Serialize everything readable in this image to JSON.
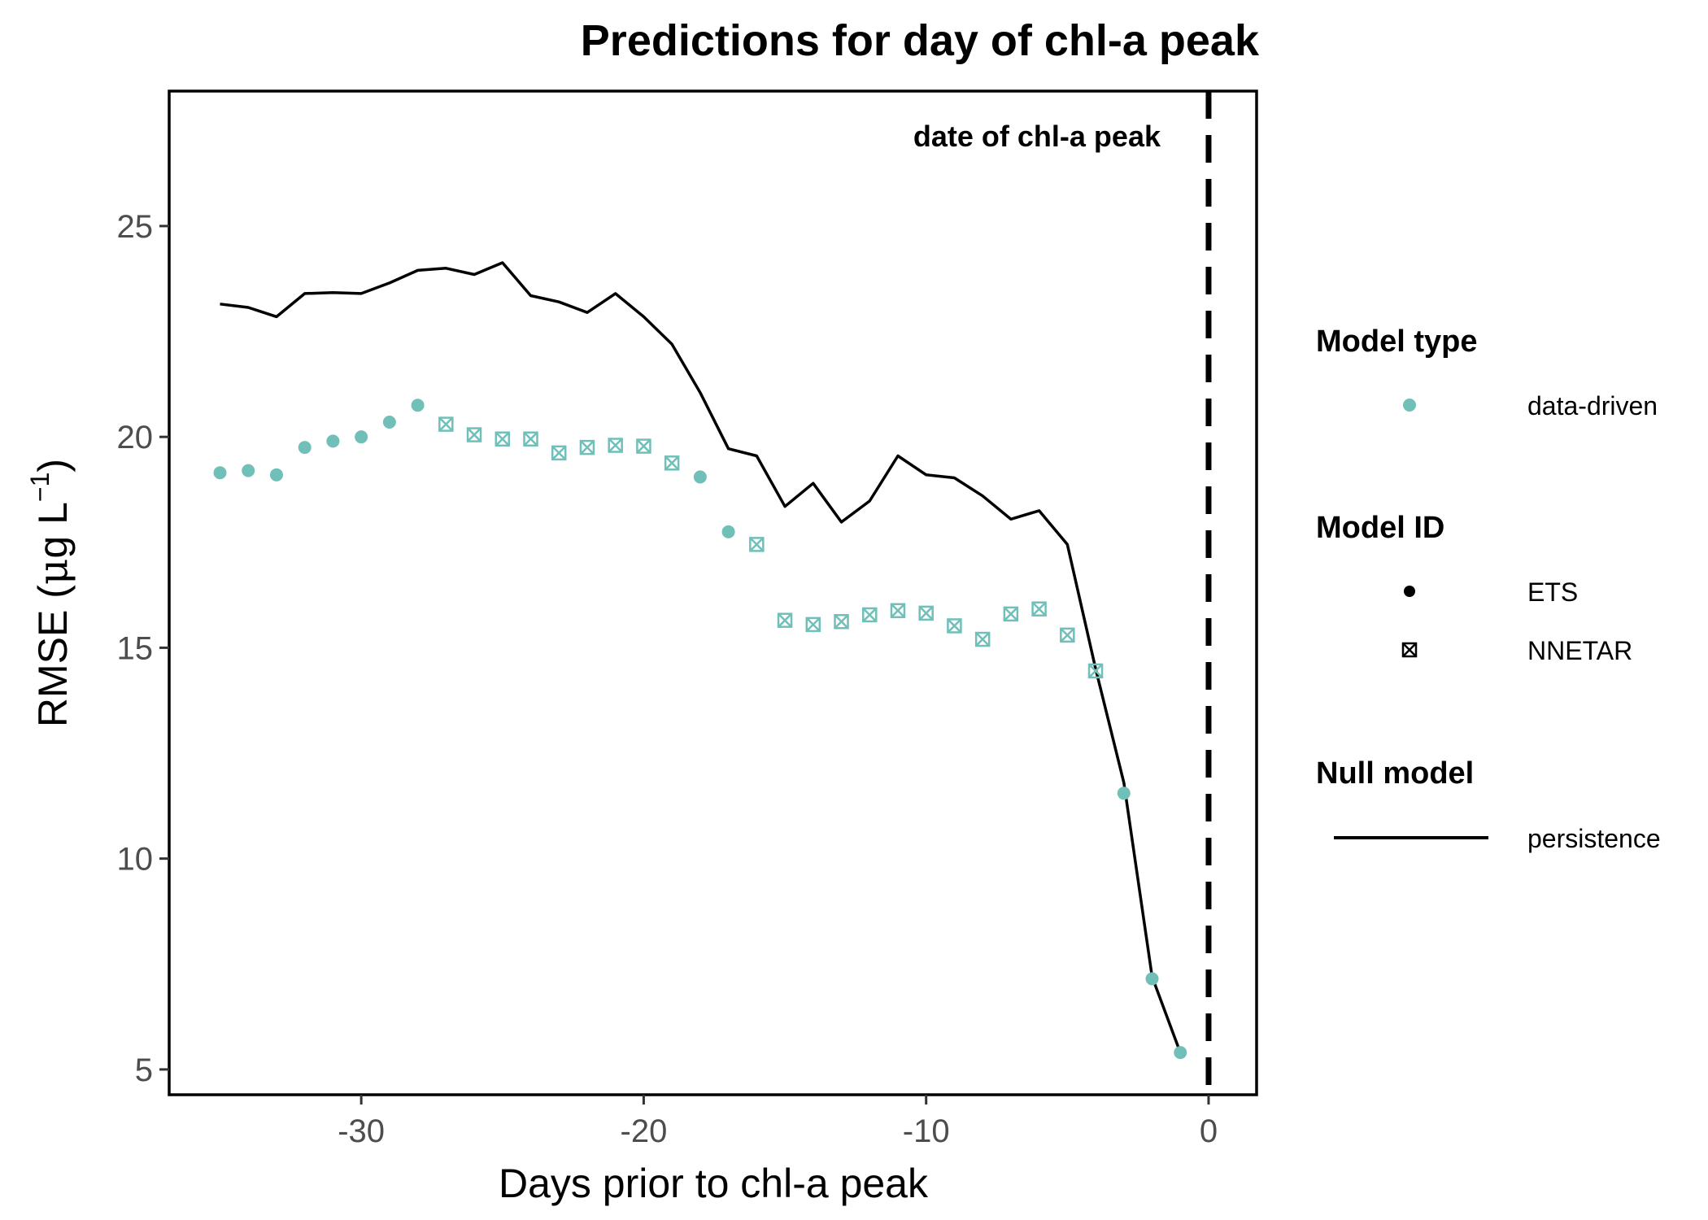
{
  "chart_data": {
    "type": "scatter",
    "title": "Predictions for day of chl-a peak",
    "xlabel": "Days prior to chl-a peak",
    "ylabel_main": "RMSE (",
    "ylabel_unit_mu": "μ",
    "ylabel_unit_rest": "g L",
    "ylabel_exponent": "−1",
    "ylabel_close": ")",
    "xlim": [
      -36.8,
      1.7
    ],
    "ylim": [
      4.4,
      28.2
    ],
    "x_ticks": [
      -30,
      -20,
      -10,
      0
    ],
    "x_tick_labels": [
      "-30",
      "-20",
      "-10",
      "0"
    ],
    "y_ticks": [
      5,
      10,
      15,
      20,
      25
    ],
    "y_tick_labels": [
      "5",
      "10",
      "15",
      "20",
      "25"
    ],
    "grid": false,
    "vline": {
      "x": 0,
      "style": "dashed",
      "label": "date of chl-a peak"
    },
    "colors": {
      "data_driven": "#71bfb9",
      "persistence": "#000000",
      "vline": "#000000"
    },
    "persistence_series": {
      "x": [
        -35,
        -34,
        -33,
        -32,
        -31,
        -30,
        -29,
        -28,
        -27,
        -26,
        -25,
        -24,
        -23,
        -22,
        -21,
        -20,
        -19,
        -18,
        -17,
        -16,
        -15,
        -14,
        -13,
        -12,
        -11,
        -10,
        -9,
        -8,
        -7,
        -6,
        -5,
        -4,
        -3,
        -2,
        -1
      ],
      "y": [
        23.15,
        23.07,
        22.85,
        23.4,
        23.42,
        23.4,
        23.65,
        23.95,
        24.0,
        23.85,
        24.13,
        23.35,
        23.2,
        22.95,
        23.4,
        22.85,
        22.2,
        21.05,
        19.72,
        19.55,
        18.35,
        18.9,
        17.98,
        18.48,
        19.55,
        19.1,
        19.03,
        18.6,
        18.05,
        18.25,
        17.45,
        14.5,
        11.8,
        7.2,
        5.4
      ]
    },
    "model_series": [
      {
        "day": -35,
        "rmse": 19.15,
        "model": "ETS"
      },
      {
        "day": -34,
        "rmse": 19.2,
        "model": "ETS"
      },
      {
        "day": -33,
        "rmse": 19.1,
        "model": "ETS"
      },
      {
        "day": -32,
        "rmse": 19.75,
        "model": "ETS"
      },
      {
        "day": -31,
        "rmse": 19.9,
        "model": "ETS"
      },
      {
        "day": -30,
        "rmse": 20.0,
        "model": "ETS"
      },
      {
        "day": -29,
        "rmse": 20.35,
        "model": "ETS"
      },
      {
        "day": -28,
        "rmse": 20.75,
        "model": "ETS"
      },
      {
        "day": -27,
        "rmse": 20.3,
        "model": "NNETAR"
      },
      {
        "day": -26,
        "rmse": 20.05,
        "model": "NNETAR"
      },
      {
        "day": -25,
        "rmse": 19.95,
        "model": "NNETAR"
      },
      {
        "day": -24,
        "rmse": 19.95,
        "model": "NNETAR"
      },
      {
        "day": -23,
        "rmse": 19.62,
        "model": "NNETAR"
      },
      {
        "day": -22,
        "rmse": 19.75,
        "model": "NNETAR"
      },
      {
        "day": -21,
        "rmse": 19.8,
        "model": "NNETAR"
      },
      {
        "day": -20,
        "rmse": 19.78,
        "model": "NNETAR"
      },
      {
        "day": -19,
        "rmse": 19.38,
        "model": "NNETAR"
      },
      {
        "day": -18,
        "rmse": 19.05,
        "model": "ETS"
      },
      {
        "day": -17,
        "rmse": 17.75,
        "model": "ETS"
      },
      {
        "day": -16,
        "rmse": 17.45,
        "model": "NNETAR"
      },
      {
        "day": -15,
        "rmse": 15.65,
        "model": "NNETAR"
      },
      {
        "day": -14,
        "rmse": 15.55,
        "model": "NNETAR"
      },
      {
        "day": -13,
        "rmse": 15.62,
        "model": "NNETAR"
      },
      {
        "day": -12,
        "rmse": 15.78,
        "model": "NNETAR"
      },
      {
        "day": -11,
        "rmse": 15.88,
        "model": "NNETAR"
      },
      {
        "day": -10,
        "rmse": 15.82,
        "model": "NNETAR"
      },
      {
        "day": -9,
        "rmse": 15.52,
        "model": "NNETAR"
      },
      {
        "day": -8,
        "rmse": 15.2,
        "model": "NNETAR"
      },
      {
        "day": -7,
        "rmse": 15.8,
        "model": "NNETAR"
      },
      {
        "day": -6,
        "rmse": 15.92,
        "model": "NNETAR"
      },
      {
        "day": -5,
        "rmse": 15.3,
        "model": "NNETAR"
      },
      {
        "day": -4,
        "rmse": 14.45,
        "model": "NNETAR"
      },
      {
        "day": -3,
        "rmse": 11.55,
        "model": "ETS"
      },
      {
        "day": -2,
        "rmse": 7.15,
        "model": "ETS"
      },
      {
        "day": -1,
        "rmse": 5.4,
        "model": "ETS"
      }
    ],
    "legend": {
      "placement": "right",
      "sections": [
        {
          "title": "Model type",
          "items": [
            {
              "label": "data-driven",
              "key": "teal-dot"
            }
          ]
        },
        {
          "title": "Model ID",
          "items": [
            {
              "label": "ETS",
              "key": "dot"
            },
            {
              "label": "NNETAR",
              "key": "boxed-x"
            }
          ]
        },
        {
          "title": "Null model",
          "items": [
            {
              "label": "persistence",
              "key": "line"
            }
          ]
        }
      ]
    }
  }
}
